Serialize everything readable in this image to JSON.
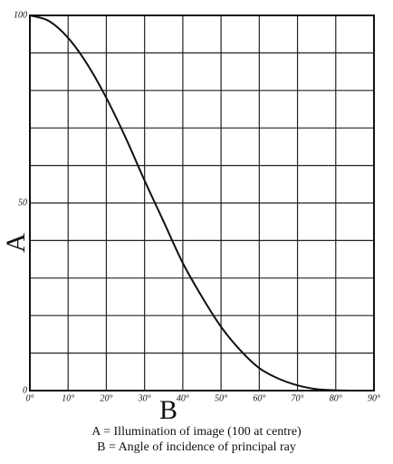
{
  "chart_data": {
    "type": "line",
    "x": [
      0,
      5,
      10,
      15,
      20,
      25,
      30,
      35,
      40,
      45,
      50,
      55,
      60,
      65,
      70,
      75,
      80,
      85,
      90
    ],
    "series": [
      {
        "color": "#111111",
        "values": [
          100,
          98.5,
          94,
          87,
          78,
          67.5,
          56,
          45,
          34,
          25,
          17,
          10.8,
          6,
          3.2,
          1.4,
          0.4,
          0.1,
          0,
          0
        ]
      }
    ],
    "xlim": [
      0,
      90
    ],
    "xticks": [
      {
        "value": 0,
        "label": "0°"
      },
      {
        "value": 10,
        "label": "10°"
      },
      {
        "value": 20,
        "label": "20°"
      },
      {
        "value": 30,
        "label": "30°"
      },
      {
        "value": 40,
        "label": "40°"
      },
      {
        "value": 50,
        "label": "50°"
      },
      {
        "value": 60,
        "label": "60°"
      },
      {
        "value": 70,
        "label": "70°"
      },
      {
        "value": 80,
        "label": "80°"
      },
      {
        "value": 90,
        "label": "90°"
      }
    ],
    "ylim": [
      0,
      100
    ],
    "yticks": [
      0,
      50,
      100
    ],
    "minor_yticks": [
      10,
      20,
      30,
      40,
      60,
      70,
      80,
      90
    ],
    "grid": true,
    "ylabel": "A",
    "xlabel": "B",
    "notes": [
      "A = Illumination of image (100 at centre)",
      "B = Angle of incidence of principal ray"
    ]
  }
}
